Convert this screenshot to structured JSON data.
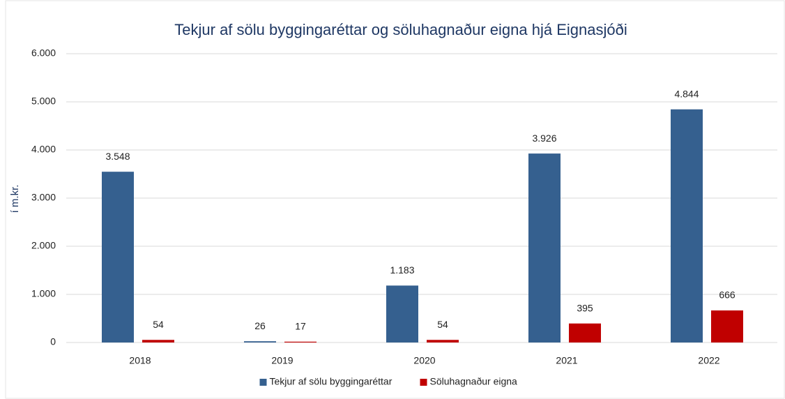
{
  "chart_data": {
    "type": "bar",
    "title": "Tekjur af sölu byggingaréttar og söluhagnaður eigna hjá Eignasjóði",
    "y_axis_label": "í m.kr.",
    "categories": [
      "2018",
      "2019",
      "2020",
      "2021",
      "2022"
    ],
    "series": [
      {
        "name": "Tekjur af sölu byggingaréttar",
        "color": "#35608f",
        "values": [
          3548,
          26,
          1183,
          3926,
          4844
        ],
        "value_labels": [
          "3.548",
          "26",
          "1.183",
          "3.926",
          "4.844"
        ]
      },
      {
        "name": "Söluhagnaður eigna",
        "color": "#c00000",
        "values": [
          54,
          17,
          54,
          395,
          666
        ],
        "value_labels": [
          "54",
          "17",
          "54",
          "395",
          "666"
        ]
      }
    ],
    "ylim": [
      0,
      6000
    ],
    "yticks": [
      {
        "value": 0,
        "label": "0"
      },
      {
        "value": 1000,
        "label": "1.000"
      },
      {
        "value": 2000,
        "label": "2.000"
      },
      {
        "value": 3000,
        "label": "3.000"
      },
      {
        "value": 4000,
        "label": "4.000"
      },
      {
        "value": 5000,
        "label": "5.000"
      },
      {
        "value": 6000,
        "label": "6.000"
      }
    ],
    "grid": true,
    "legend": "bottom"
  }
}
